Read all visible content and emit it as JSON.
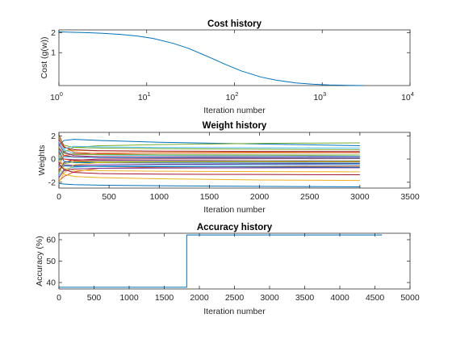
{
  "chart_data": [
    {
      "type": "line",
      "title": "Cost history",
      "xlabel": "Iteration number",
      "ylabel": "Cost (g(w))",
      "xscale": "log",
      "yscale": "log",
      "xlim": [
        1,
        10000
      ],
      "ylim": [
        0.32,
        2.2
      ],
      "grid": false,
      "x_ticks": [
        {
          "base": "10",
          "exp": "0",
          "value": 1
        },
        {
          "base": "10",
          "exp": "1",
          "value": 10
        },
        {
          "base": "10",
          "exp": "2",
          "value": 100
        },
        {
          "base": "10",
          "exp": "3",
          "value": 1000
        },
        {
          "base": "10",
          "exp": "4",
          "value": 10000
        }
      ],
      "y_ticks": [
        {
          "label": "1",
          "value": 1
        },
        {
          "label": "2",
          "value": 2
        }
      ],
      "series": [
        {
          "color": "#0072BD",
          "x": [
            1,
            2,
            3,
            5,
            8,
            12,
            20,
            30,
            50,
            80,
            120,
            200,
            300,
            500,
            800,
            1200,
            2000,
            3000
          ],
          "y": [
            2.05,
            2.0,
            1.96,
            1.88,
            1.77,
            1.63,
            1.38,
            1.16,
            0.87,
            0.66,
            0.53,
            0.43,
            0.385,
            0.35,
            0.335,
            0.327,
            0.322,
            0.32
          ]
        }
      ]
    },
    {
      "type": "line",
      "title": "Weight history",
      "xlabel": "Iteration number",
      "ylabel": "Weights",
      "xlim": [
        0,
        3500
      ],
      "ylim": [
        -2.5,
        2.3
      ],
      "grid": false,
      "x_ticks": [
        0,
        500,
        1000,
        1500,
        2000,
        2500,
        3000,
        3500
      ],
      "y_ticks": [
        -2,
        0,
        2
      ],
      "series_x": [
        0,
        50,
        150,
        400,
        1000,
        2000,
        3000
      ],
      "series": [
        {
          "color": "#0072BD",
          "y": [
            1.2,
            1.6,
            1.7,
            1.6,
            1.45,
            1.3,
            1.15
          ]
        },
        {
          "color": "#D95319",
          "y": [
            -1.9,
            -1.5,
            -1.1,
            -0.8,
            -0.7,
            -0.65,
            -0.6
          ]
        },
        {
          "color": "#EDB120",
          "y": [
            0.4,
            0.7,
            0.75,
            0.7,
            0.65,
            0.6,
            0.55
          ]
        },
        {
          "color": "#7E2F8E",
          "y": [
            -0.3,
            -0.5,
            -0.55,
            -0.5,
            -0.45,
            -0.42,
            -0.4
          ]
        },
        {
          "color": "#77AC30",
          "y": [
            1.9,
            1.2,
            1.0,
            0.95,
            0.9,
            0.85,
            0.8
          ]
        },
        {
          "color": "#4DBEEE",
          "y": [
            -1.4,
            -0.9,
            -0.7,
            -0.6,
            -0.55,
            -0.5,
            -0.48
          ]
        },
        {
          "color": "#A2142F",
          "y": [
            0.9,
            0.3,
            0.2,
            0.15,
            0.12,
            0.1,
            0.08
          ]
        },
        {
          "color": "#0072BD",
          "y": [
            -2.1,
            -2.15,
            -2.2,
            -2.25,
            -2.3,
            -2.35,
            -2.4
          ]
        },
        {
          "color": "#D95319",
          "y": [
            2.1,
            1.1,
            0.6,
            0.45,
            0.35,
            0.3,
            0.25
          ]
        },
        {
          "color": "#EDB120",
          "y": [
            -0.8,
            -1.3,
            -1.5,
            -1.6,
            -1.7,
            -1.8,
            -1.85
          ]
        },
        {
          "color": "#7E2F8E",
          "y": [
            0.1,
            0.0,
            -0.05,
            -0.1,
            -0.12,
            -0.15,
            -0.16
          ]
        },
        {
          "color": "#77AC30",
          "y": [
            -0.2,
            0.6,
            1.0,
            1.15,
            1.25,
            1.35,
            1.4
          ]
        },
        {
          "color": "#4DBEEE",
          "y": [
            1.5,
            0.8,
            0.5,
            0.35,
            0.3,
            0.27,
            0.25
          ]
        },
        {
          "color": "#A2142F",
          "y": [
            -1.0,
            -0.3,
            -0.1,
            0.0,
            0.02,
            0.03,
            0.04
          ]
        },
        {
          "color": "#0072BD",
          "y": [
            0.7,
            -0.2,
            -0.3,
            -0.32,
            -0.33,
            -0.34,
            -0.35
          ]
        },
        {
          "color": "#D95319",
          "y": [
            -0.5,
            0.3,
            0.45,
            0.5,
            0.52,
            0.54,
            0.55
          ]
        },
        {
          "color": "#EDB120",
          "y": [
            0.2,
            -0.8,
            -0.95,
            -1.0,
            -1.05,
            -1.08,
            -1.1
          ]
        },
        {
          "color": "#7E2F8E",
          "y": [
            -1.6,
            -1.0,
            -0.85,
            -0.8,
            -0.78,
            -0.76,
            -0.75
          ]
        },
        {
          "color": "#77AC30",
          "y": [
            1.0,
            0.5,
            0.4,
            0.38,
            0.37,
            0.36,
            0.35
          ]
        },
        {
          "color": "#4DBEEE",
          "y": [
            -0.1,
            0.2,
            0.15,
            0.12,
            0.1,
            0.09,
            0.08
          ]
        },
        {
          "color": "#A2142F",
          "y": [
            1.7,
            1.0,
            0.8,
            0.72,
            0.68,
            0.66,
            0.65
          ]
        },
        {
          "color": "#0072BD",
          "y": [
            -0.6,
            -0.6,
            -0.62,
            -0.64,
            -0.66,
            -0.68,
            -0.7
          ]
        },
        {
          "color": "#D95319",
          "y": [
            0.5,
            0.0,
            -0.15,
            -0.2,
            -0.22,
            -0.23,
            -0.24
          ]
        },
        {
          "color": "#EDB120",
          "y": [
            -2.0,
            -1.2,
            -0.5,
            -0.3,
            -0.25,
            -0.22,
            -0.2
          ]
        },
        {
          "color": "#7E2F8E",
          "y": [
            1.3,
            0.6,
            0.3,
            0.2,
            0.18,
            0.17,
            0.16
          ]
        },
        {
          "color": "#77AC30",
          "y": [
            -1.2,
            -0.4,
            -0.25,
            -0.22,
            -0.2,
            -0.19,
            -0.18
          ]
        },
        {
          "color": "#4DBEEE",
          "y": [
            0.0,
            0.9,
            1.1,
            1.05,
            1.0,
            0.97,
            0.95
          ]
        },
        {
          "color": "#A2142F",
          "y": [
            -0.4,
            -0.9,
            -1.15,
            -1.25,
            -1.3,
            -1.33,
            -1.35
          ]
        }
      ]
    },
    {
      "type": "line",
      "title": "Accuracy history",
      "xlabel": "Iteration number",
      "ylabel": "Accuracy (%)",
      "xlim": [
        0,
        5000
      ],
      "ylim": [
        37,
        63
      ],
      "grid": false,
      "x_ticks": [
        0,
        500,
        1000,
        1500,
        2000,
        2500,
        3000,
        3500,
        4000,
        4500,
        5000
      ],
      "y_ticks": [
        40,
        50,
        60
      ],
      "series": [
        {
          "color": "#0072BD",
          "x": [
            0,
            1820,
            1820,
            4600
          ],
          "y": [
            37.8,
            37.8,
            62.2,
            62.2
          ]
        }
      ]
    }
  ]
}
